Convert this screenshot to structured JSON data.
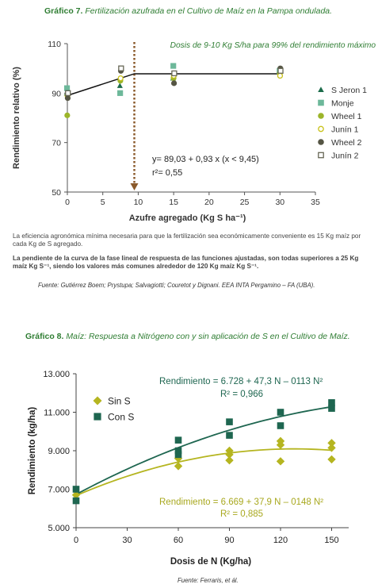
{
  "chart1": {
    "title_bold": "Gráfico 7.",
    "title_italic": "Fertilización azufrada en el Cultivo de Maíz en la Pampa ondulada.",
    "annotation": "Dosis de 9-10 Kg S/ha para 99% del rendimiento máximo",
    "equation": "y= 89,03 + 0,93 x (x < 9,45)",
    "r2": "r²= 0,55",
    "note1": "La eficiencia agronómica mínima necesaria para que la fertilización sea económicamente conveniente es 15 Kg maíz por cada Kg de S agregado.",
    "note2": "La pendiente de la curva de la fase lineal de respuesta de las funciones ajustadas, son todas superiores a 25 Kg maíz Kg S⁻¹, siendo los valores más comunes alrededor de 120 Kg maíz Kg S⁻¹.",
    "source": "Fuente: Gutiérrez Boem; Prystupa; Salvagiotti; Couretot y Dignani. EEA INTA Pergamino – FA (UBA).",
    "chart_data": {
      "type": "scatter",
      "xlabel": "Azufre agregado (Kg S ha⁻¹)",
      "ylabel": "Rendimiento relativo (%)",
      "xlim": [
        0,
        35
      ],
      "ylim": [
        50,
        110
      ],
      "x_ticks": [
        "0",
        "5",
        "10",
        "15",
        "20",
        "25",
        "30",
        "35"
      ],
      "y_ticks": [
        "50",
        "70",
        "90",
        "110"
      ],
      "threshold_x": 9.45,
      "fit": [
        [
          0,
          89.03
        ],
        [
          9.45,
          97.82
        ],
        [
          30,
          97.82
        ]
      ],
      "series": [
        {
          "name": "S Jeron 1",
          "marker": "triangle",
          "color": "#1b6b4a",
          "points": [
            [
              0,
              90
            ],
            [
              7.5,
              93
            ],
            [
              15,
              96
            ],
            [
              30,
              99
            ]
          ]
        },
        {
          "name": "Monje",
          "marker": "square",
          "color": "#6db89a",
          "points": [
            [
              0,
              92
            ],
            [
              7.5,
              90
            ],
            [
              15,
              101
            ],
            [
              30,
              99
            ]
          ]
        },
        {
          "name": "Wheel 1",
          "marker": "circle",
          "color": "#9cb52a",
          "points": [
            [
              0,
              81
            ],
            [
              7.5,
              95
            ],
            [
              15,
              96
            ],
            [
              30,
              98
            ]
          ]
        },
        {
          "name": "Junín 1",
          "marker": "circle-open",
          "color": "#c9c21c",
          "points": [
            [
              0,
              89
            ],
            [
              7.5,
              96
            ],
            [
              15,
              97
            ],
            [
              30,
              97
            ]
          ]
        },
        {
          "name": "Wheel 2",
          "marker": "circle",
          "color": "#555544",
          "points": [
            [
              0,
              88
            ],
            [
              7.5,
              99
            ],
            [
              15,
              94
            ],
            [
              30,
              100
            ]
          ]
        },
        {
          "name": "Junín 2",
          "marker": "square-open",
          "color": "#666655",
          "points": [
            [
              0,
              90
            ],
            [
              7.5,
              100
            ],
            [
              15,
              98
            ],
            [
              30,
              99
            ]
          ]
        }
      ]
    }
  },
  "chart2": {
    "title_bold": "Gráfico 8.",
    "title_italic": "Maíz: Respuesta a Nitrógeno con y sin aplicación de S en el Cultivo de Maíz.",
    "eq_con": "Rendimiento = 6.728 + 47,3 N – 0113 N²",
    "r2_con": "R² = 0,966",
    "eq_sin": "Rendimiento = 6.669 + 37,9 N – 0148 N²",
    "r2_sin": "R² = 0,885",
    "source": "Fuente: Ferraris, et ál.",
    "chart_data": {
      "type": "scatter",
      "xlabel": "Dosis de N (Kg/ha)",
      "ylabel": "Rendimiento (kg/ha)",
      "xlim": [
        0,
        160
      ],
      "ylim": [
        5000,
        13000
      ],
      "x_ticks": [
        "0",
        "30",
        "60",
        "90",
        "120",
        "150"
      ],
      "y_ticks": [
        "5.000",
        "7.000",
        "9.000",
        "11.000",
        "13.000"
      ],
      "series": [
        {
          "name": "Sin S",
          "marker": "diamond",
          "color": "#b5b520",
          "points": [
            [
              0,
              6700
            ],
            [
              60,
              8600
            ],
            [
              60,
              8200
            ],
            [
              90,
              9000
            ],
            [
              90,
              8500
            ],
            [
              90,
              8800
            ],
            [
              120,
              9500
            ],
            [
              120,
              9300
            ],
            [
              120,
              8450
            ],
            [
              150,
              9400
            ],
            [
              150,
              9150
            ],
            [
              150,
              8550
            ]
          ],
          "fit": {
            "a": 6669,
            "b": 37.9,
            "c": -0.148
          }
        },
        {
          "name": "Con S",
          "marker": "square",
          "color": "#1e6650",
          "points": [
            [
              0,
              7000
            ],
            [
              0,
              6400
            ],
            [
              60,
              9550
            ],
            [
              60,
              9000
            ],
            [
              60,
              8800
            ],
            [
              90,
              10500
            ],
            [
              90,
              9800
            ],
            [
              120,
              11000
            ],
            [
              120,
              10300
            ],
            [
              150,
              11500
            ],
            [
              150,
              11200
            ]
          ],
          "fit": {
            "a": 6728,
            "b": 47.3,
            "c": -0.113
          }
        }
      ]
    }
  }
}
